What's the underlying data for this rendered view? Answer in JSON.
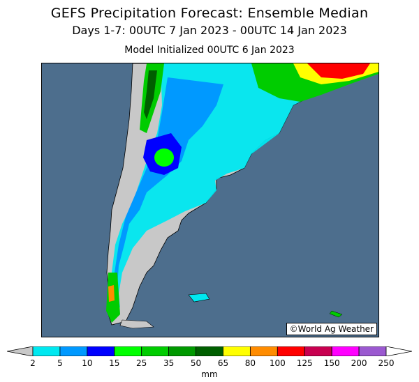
{
  "header": {
    "title": "GEFS Precipitation Forecast: Ensemble Median",
    "subtitle": "Days 1-7: 00UTC 7 Jan 2023 - 00UTC 14 Jan 2023",
    "init": "Model Initialized 00UTC 6 Jan 2023"
  },
  "map": {
    "region": "Southern South America",
    "credit": "©World Ag Weather",
    "ocean_color": "#4d6e8d",
    "land_color": "#c8c8c8"
  },
  "legend": {
    "units": "mm",
    "ticks": [
      "2",
      "5",
      "10",
      "15",
      "25",
      "35",
      "50",
      "65",
      "80",
      "100",
      "125",
      "150",
      "200",
      "250"
    ],
    "colors": [
      "#00e8f0",
      "#0099ff",
      "#0000ff",
      "#00ff00",
      "#00cc00",
      "#009900",
      "#005f00",
      "#ffff00",
      "#ff8c00",
      "#ff0000",
      "#c80050",
      "#ff00ff",
      "#9b59d0"
    ]
  }
}
